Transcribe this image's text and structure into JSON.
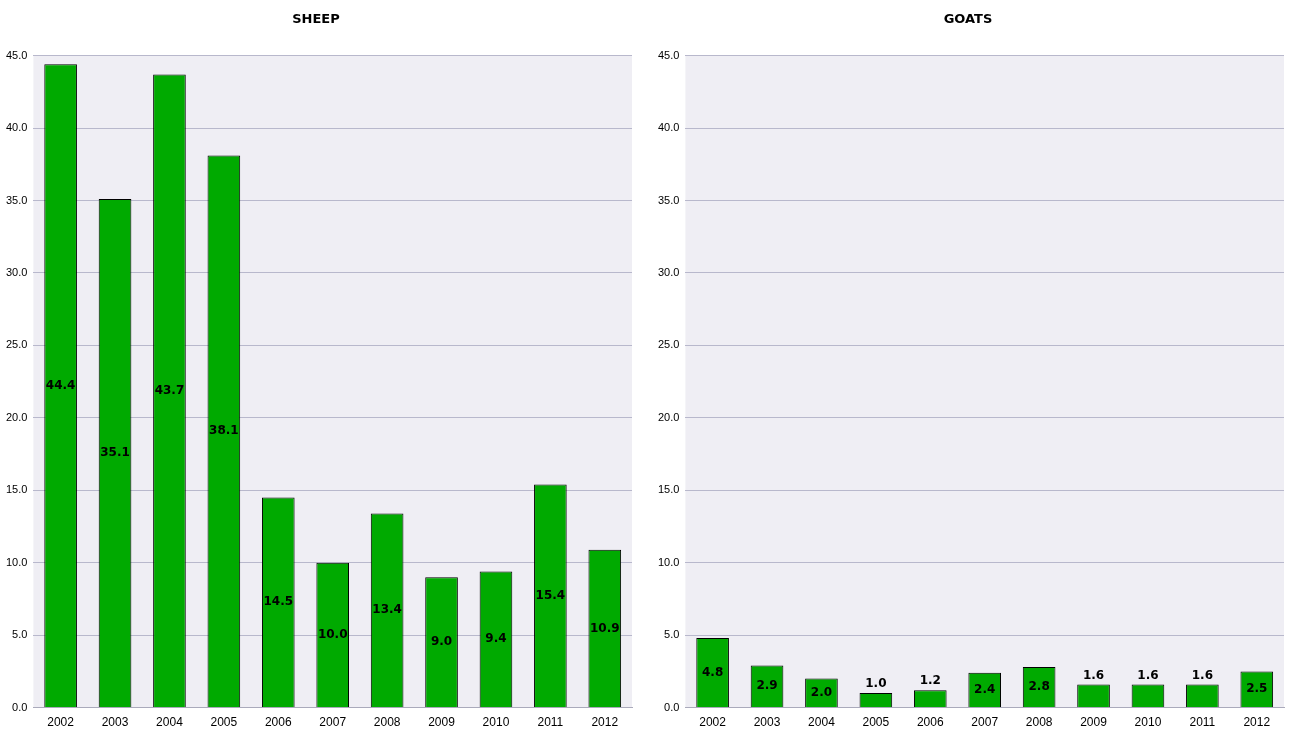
{
  "chart_data": [
    {
      "type": "bar",
      "title": "SHEEP",
      "categories": [
        "2002",
        "2003",
        "2004",
        "2005",
        "2006",
        "2007",
        "2008",
        "2009",
        "2010",
        "2011",
        "2012"
      ],
      "values": [
        44.4,
        35.1,
        43.7,
        38.1,
        14.5,
        10.0,
        13.4,
        9.0,
        9.4,
        15.4,
        10.9
      ],
      "color": "#00aa00",
      "value_labels": [
        "44.4",
        "35.1",
        "43.7",
        "38.1",
        "14.5",
        "10.0",
        "13.4",
        "9.0",
        "9.4",
        "15.4",
        "10.9"
      ],
      "ylim": [
        0,
        45
      ],
      "yticks": [
        {
          "value": 0,
          "label": "0.0"
        },
        {
          "value": 5,
          "label": "5.0"
        },
        {
          "value": 10,
          "label": "10.0"
        },
        {
          "value": 15,
          "label": "15.0"
        },
        {
          "value": 20,
          "label": "20.0"
        },
        {
          "value": 25,
          "label": "25.0"
        },
        {
          "value": 30,
          "label": "30.0"
        },
        {
          "value": 35,
          "label": "35.0"
        },
        {
          "value": 40,
          "label": "40.0"
        },
        {
          "value": 45,
          "label": "45.0"
        }
      ],
      "grid": "y",
      "legend": false
    },
    {
      "type": "bar",
      "title": "GOATS",
      "categories": [
        "2002",
        "2003",
        "2004",
        "2005",
        "2006",
        "2007",
        "2008",
        "2009",
        "2010",
        "2011",
        "2012"
      ],
      "values": [
        4.8,
        2.9,
        2.0,
        1.0,
        1.2,
        2.4,
        2.8,
        1.6,
        1.6,
        1.6,
        2.5
      ],
      "color": "#00aa00",
      "value_labels": [
        "4.8",
        "2.9",
        "2.0",
        "1.0",
        "1.2",
        "2.4",
        "2.8",
        "1.6",
        "1.6",
        "1.6",
        "2.5"
      ],
      "ylim": [
        0,
        45
      ],
      "yticks": [
        {
          "value": 0,
          "label": "0.0"
        },
        {
          "value": 5,
          "label": "5.0"
        },
        {
          "value": 10,
          "label": "10.0"
        },
        {
          "value": 15,
          "label": "15.0"
        },
        {
          "value": 20,
          "label": "20.0"
        },
        {
          "value": 25,
          "label": "25.0"
        },
        {
          "value": 30,
          "label": "30.0"
        },
        {
          "value": 35,
          "label": "35.0"
        },
        {
          "value": 40,
          "label": "40.0"
        },
        {
          "value": 45,
          "label": "45.0"
        }
      ],
      "grid": "y",
      "legend": false
    }
  ]
}
